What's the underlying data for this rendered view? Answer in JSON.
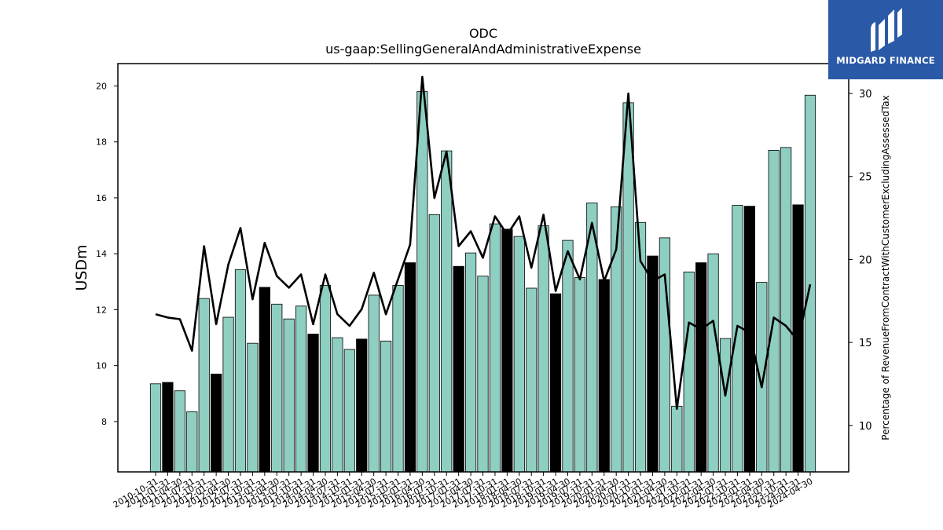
{
  "brand": {
    "name": "MIDGARD FINANCE"
  },
  "chart_data": {
    "type": "bar",
    "title": "ODC",
    "subtitle": "us-gaap:SellingGeneralAndAdministrativeExpense",
    "ylabel": "USDm",
    "y2label": "Percentage of RevenueFromContractWithCustomerExcludingAssessedTax",
    "ylim": [
      6.2,
      20.8
    ],
    "y2lim": [
      7.2,
      31.8
    ],
    "yticks": [
      8,
      10,
      12,
      14,
      16,
      18,
      20
    ],
    "y2ticks": [
      10,
      15,
      20,
      25,
      30
    ],
    "bar_color_default": "#8ecfc2",
    "bar_color_highlight": "#000000",
    "line_color": "#000000",
    "grid": false,
    "categories": [
      "2010-10-31",
      "2011-01-31",
      "2011-04-30",
      "2011-07-31",
      "2011-10-31",
      "2012-01-31",
      "2012-04-30",
      "2012-07-31",
      "2012-10-31",
      "2013-01-31",
      "2013-04-30",
      "2013-07-31",
      "2013-10-31",
      "2014-01-31",
      "2014-04-30",
      "2014-07-31",
      "2014-10-31",
      "2015-01-31",
      "2015-04-30",
      "2015-07-31",
      "2015-10-31",
      "2016-01-31",
      "2016-04-30",
      "2016-07-31",
      "2016-10-31",
      "2017-01-31",
      "2017-04-30",
      "2017-07-31",
      "2017-10-31",
      "2018-01-31",
      "2018-04-30",
      "2018-07-31",
      "2018-10-31",
      "2019-01-31",
      "2019-04-30",
      "2019-07-31",
      "2019-10-31",
      "2020-01-31",
      "2020-04-30",
      "2020-07-31",
      "2020-10-31",
      "2021-01-31",
      "2021-04-30",
      "2021-07-31",
      "2021-10-31",
      "2022-01-31",
      "2022-04-30",
      "2022-07-31",
      "2022-10-31",
      "2023-01-31",
      "2023-04-30",
      "2023-07-31",
      "2023-10-31",
      "2024-01-31",
      "2024-04-30"
    ],
    "xtick_labels": [
      "2010-10-31",
      "2011-01-31",
      "2011-04-30",
      "2011-07-31",
      "2011-10-31",
      "2012-01-31",
      "2012-04-30",
      "2012-07-31",
      "2012-10-31",
      "2013-01-31",
      "2013-04-30",
      "2013-07-31",
      "2013-10-31",
      "2014-01-31",
      "2014-04-30",
      "2014-07-31",
      "2014-10-31",
      "2015-01-31",
      "2015-04-30",
      "2015-07-31",
      "2015-10-31",
      "2016-01-31",
      "2016-04-30",
      "2016-07-31",
      "2016-10-31",
      "2017-01-31",
      "2017-04-30",
      "2017-07-31",
      "2017-10-31",
      "2018-01-31",
      "2018-04-30",
      "2018-07-31",
      "2018-10-31",
      "2019-01-31",
      "2019-04-30",
      "2019-07-31",
      "2019-10-31",
      "2020-01-31",
      "2020-04-30",
      "2020-07-31",
      "2020-10-31",
      "2021-01-31",
      "2021-04-30",
      "2021-07-31",
      "2021-10-31",
      "2022-01-31",
      "2022-04-30",
      "2022-07-31",
      "2022-10-31",
      "2023-01-31",
      "2023-04-30",
      "2023-07-31",
      "2023-10-31",
      "2024-01-31",
      "2024-04-30"
    ],
    "values": [
      9.35,
      9.4,
      9.1,
      8.35,
      12.4,
      9.7,
      11.73,
      13.43,
      10.8,
      12.8,
      12.2,
      11.67,
      12.13,
      11.13,
      12.87,
      11.0,
      10.58,
      10.95,
      12.52,
      10.88,
      12.87,
      13.68,
      19.8,
      15.4,
      17.68,
      13.55,
      14.03,
      13.2,
      15.07,
      14.88,
      14.62,
      12.77,
      15.0,
      12.57,
      14.48,
      13.15,
      15.82,
      13.08,
      15.68,
      19.4,
      15.12,
      13.92,
      14.57,
      8.55,
      13.35,
      13.68,
      14.0,
      10.97,
      15.73,
      15.7,
      12.98,
      17.7,
      17.8,
      15.75,
      19.67
    ],
    "highlight": [
      false,
      true,
      false,
      false,
      false,
      true,
      false,
      false,
      false,
      true,
      false,
      false,
      false,
      true,
      false,
      false,
      false,
      true,
      false,
      false,
      false,
      true,
      false,
      false,
      false,
      true,
      false,
      false,
      false,
      true,
      false,
      false,
      false,
      true,
      false,
      false,
      false,
      true,
      false,
      false,
      false,
      true,
      false,
      false,
      false,
      true,
      false,
      false,
      false,
      true,
      false,
      false,
      false,
      true,
      false
    ],
    "line_values": [
      16.7,
      16.5,
      16.4,
      14.5,
      20.8,
      16.1,
      19.7,
      21.9,
      17.6,
      21.0,
      19.0,
      18.3,
      19.1,
      16.1,
      19.1,
      16.7,
      16.0,
      17.0,
      19.2,
      16.7,
      18.8,
      20.9,
      31.0,
      23.7,
      26.5,
      20.8,
      21.7,
      20.1,
      22.6,
      21.5,
      22.6,
      19.5,
      22.7,
      18.1,
      20.5,
      18.8,
      22.2,
      18.7,
      20.6,
      30.0,
      19.9,
      18.7,
      19.1,
      11.0,
      16.2,
      15.8,
      16.3,
      11.8,
      16.0,
      15.6,
      12.3,
      16.5,
      16.0,
      15.1,
      18.5
    ]
  }
}
